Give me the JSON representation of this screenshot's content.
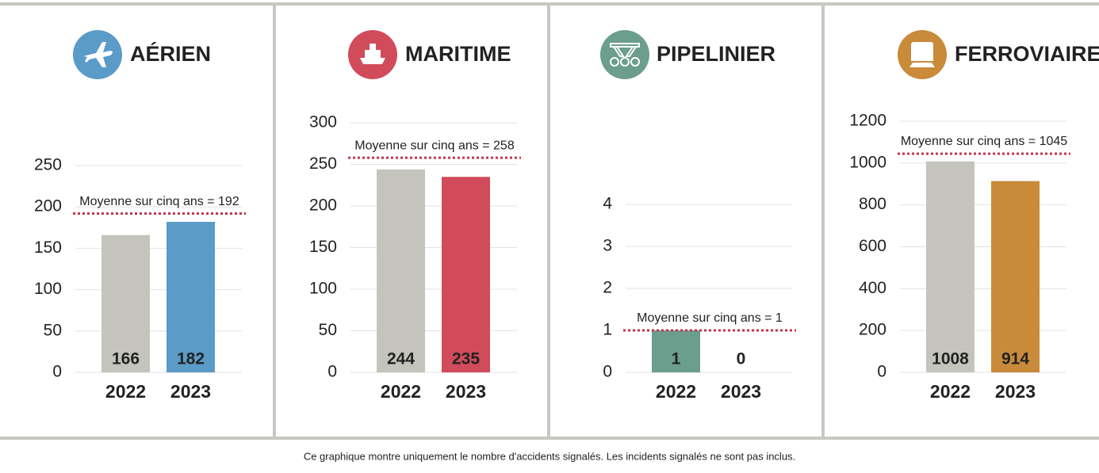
{
  "chart_data": [
    {
      "type": "bar",
      "title": "AÉRIEN",
      "icon_color": "#5b9bc8",
      "categories": [
        "2022",
        "2023"
      ],
      "values": [
        166,
        182
      ],
      "colors": [
        "#c4c4bd",
        "#5b9bc8"
      ],
      "ylim": [
        0,
        250
      ],
      "yticks": [
        0,
        50,
        100,
        150,
        200,
        250
      ],
      "grid": true,
      "reference_line": {
        "value": 192,
        "label": "Moyenne sur cinq ans = 192",
        "color": "#c0394b"
      }
    },
    {
      "type": "bar",
      "title": "MARITIME",
      "icon_color": "#d14b5a",
      "categories": [
        "2022",
        "2023"
      ],
      "values": [
        244,
        235
      ],
      "colors": [
        "#c4c4bd",
        "#d14b5a"
      ],
      "ylim": [
        0,
        300
      ],
      "yticks": [
        0,
        50,
        100,
        150,
        200,
        250,
        300
      ],
      "grid": true,
      "reference_line": {
        "value": 258,
        "label": "Moyenne sur cinq ans = 258",
        "color": "#c0394b"
      }
    },
    {
      "type": "bar",
      "title": "PIPELINIER",
      "icon_color": "#6b9e8c",
      "categories": [
        "2022",
        "2023"
      ],
      "values": [
        1,
        0
      ],
      "colors": [
        "#6b9e8c",
        "#6b9e8c"
      ],
      "ylim": [
        0,
        4
      ],
      "yticks": [
        0,
        1,
        2,
        3,
        4
      ],
      "grid": true,
      "reference_line": {
        "value": 1,
        "label": "Moyenne sur cinq ans = 1",
        "color": "#c0394b"
      }
    },
    {
      "type": "bar",
      "title": "FERROVIAIRE",
      "icon_color": "#c98a3a",
      "categories": [
        "2022",
        "2023"
      ],
      "values": [
        1008,
        914
      ],
      "colors": [
        "#c4c4bd",
        "#c98a3a"
      ],
      "ylim": [
        0,
        1200
      ],
      "yticks": [
        0,
        200,
        400,
        600,
        800,
        1000,
        1200
      ],
      "grid": true,
      "reference_line": {
        "value": 1045,
        "label": "Moyenne sur cinq ans = 1045",
        "color": "#c0394b"
      }
    }
  ],
  "note": "Ce graphique montre uniquement le nombre d'accidents signalés. Les incidents signalés ne sont pas inclus."
}
